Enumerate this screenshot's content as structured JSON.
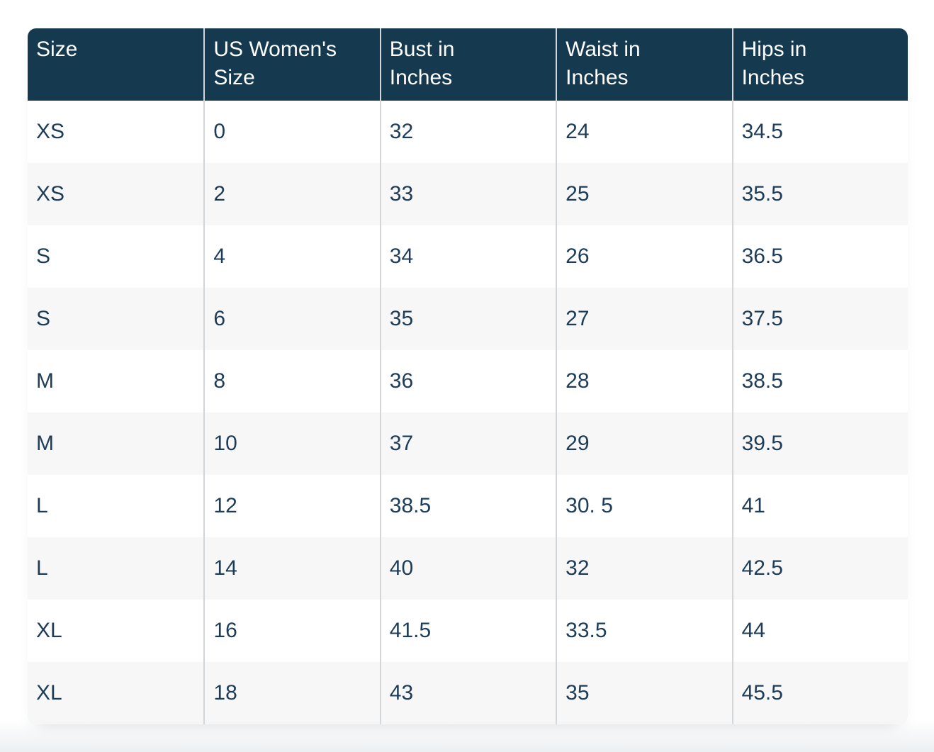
{
  "table": {
    "columns": [
      {
        "name": "size",
        "label": "Size",
        "line1": "Size",
        "line2": ""
      },
      {
        "name": "us_womens_size",
        "label": "US Women's Size",
        "line1": "US Women's",
        "line2": "Size"
      },
      {
        "name": "bust",
        "label": "Bust in Inches",
        "line1": "Bust in",
        "line2": "Inches"
      },
      {
        "name": "waist",
        "label": "Waist in Inches",
        "line1": "Waist in",
        "line2": "Inches"
      },
      {
        "name": "hips",
        "label": "Hips in Inches",
        "line1": "Hips in",
        "line2": "Inches"
      }
    ],
    "rows": [
      {
        "cells": [
          "XS",
          "0",
          "32",
          "24",
          "34.5"
        ]
      },
      {
        "cells": [
          "XS",
          "2",
          "33",
          "25",
          "35.5"
        ]
      },
      {
        "cells": [
          "S",
          "4",
          "34",
          "26",
          "36.5"
        ]
      },
      {
        "cells": [
          "S",
          "6",
          "35",
          "27",
          "37.5"
        ]
      },
      {
        "cells": [
          "M",
          "8",
          "36",
          "28",
          "38.5"
        ]
      },
      {
        "cells": [
          "M",
          "10",
          "37",
          "29",
          "39.5"
        ]
      },
      {
        "cells": [
          "L",
          "12",
          "38.5",
          "30. 5",
          "41"
        ]
      },
      {
        "cells": [
          "L",
          "14",
          "40",
          "32",
          "42.5"
        ]
      },
      {
        "cells": [
          "XL",
          "16",
          "41.5",
          "33.5",
          "44"
        ]
      },
      {
        "cells": [
          "XL",
          "18",
          "43",
          "35",
          "45.5"
        ]
      }
    ]
  },
  "colors": {
    "header_bg": "#15394F",
    "header_text": "#FFFFFF",
    "cell_text": "#1D3C58",
    "row_bg": "#FFFFFF",
    "row_alt_bg": "#F7F7F8",
    "column_divider": "#D3D6D8",
    "bottom_fade": "#ECEFF1"
  }
}
